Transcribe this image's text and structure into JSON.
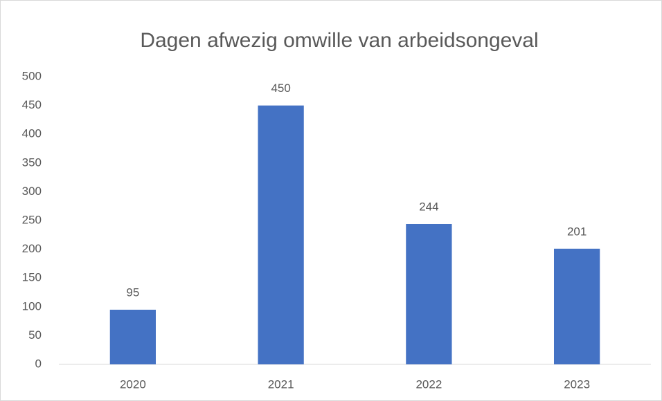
{
  "chart_data": {
    "type": "bar",
    "title": "Dagen afwezig omwille van arbeidsongeval",
    "categories": [
      "2020",
      "2021",
      "2022",
      "2023"
    ],
    "values": [
      95,
      450,
      244,
      201
    ],
    "color": "#4472c4",
    "ylim": [
      0,
      500
    ],
    "yticks": [
      0,
      50,
      100,
      150,
      200,
      250,
      300,
      350,
      400,
      450,
      500
    ],
    "grid": false,
    "data_labels": true
  }
}
